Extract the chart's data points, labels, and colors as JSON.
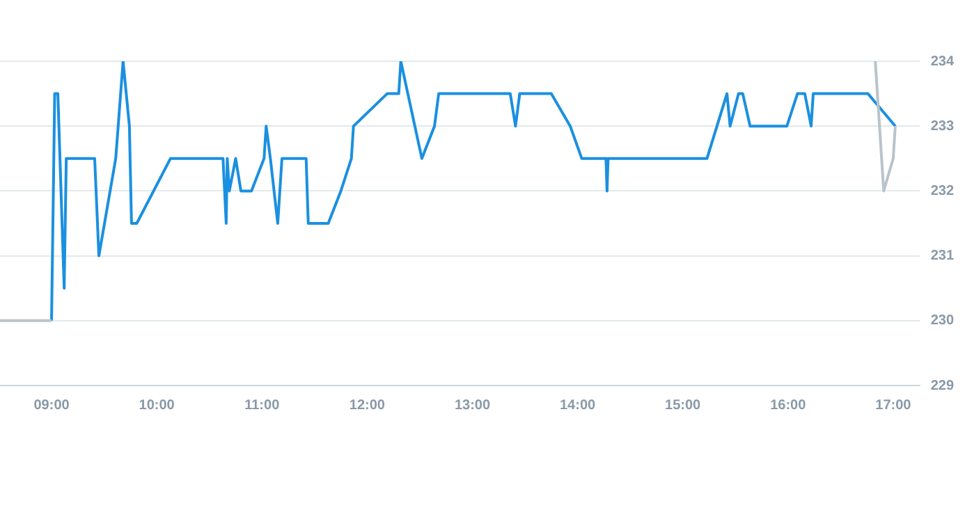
{
  "chart_data": {
    "type": "line",
    "xlim": [
      8.51,
      17.25
    ],
    "ylim": [
      229,
      234
    ],
    "xticks": [
      {
        "value": 9,
        "label": "09:00"
      },
      {
        "value": 10,
        "label": "10:00"
      },
      {
        "value": 11,
        "label": "11:00"
      },
      {
        "value": 12,
        "label": "12:00"
      },
      {
        "value": 13,
        "label": "13:00"
      },
      {
        "value": 14,
        "label": "14:00"
      },
      {
        "value": 15,
        "label": "15:00"
      },
      {
        "value": 16,
        "label": "16:00"
      },
      {
        "value": 17,
        "label": "17:00"
      }
    ],
    "yticks": [
      229,
      230,
      231,
      232,
      233,
      234
    ],
    "grid": "y",
    "legend": false,
    "marker": "none",
    "line_style": "solid",
    "series": [
      {
        "color": "#b8c4cc",
        "x": [
          8.51,
          9.0,
          9.01,
          16.83,
          16.91,
          17.0,
          17.02
        ],
        "values": [
          230,
          230,
          null,
          234,
          232,
          232.5,
          233
        ]
      },
      {
        "color": "#1a90e0",
        "x": [
          9.0,
          9.03,
          9.06,
          9.12,
          9.14,
          9.41,
          9.45,
          9.61,
          9.68,
          9.74,
          9.76,
          9.81,
          10.13,
          10.63,
          10.66,
          10.67,
          10.69,
          10.75,
          10.8,
          10.9,
          11.02,
          11.04,
          11.08,
          11.15,
          11.19,
          11.42,
          11.44,
          11.63,
          11.75,
          11.85,
          11.87,
          12.19,
          12.3,
          12.32,
          12.52,
          12.64,
          12.68,
          13.36,
          13.41,
          13.45,
          13.75,
          13.93,
          14.04,
          14.27,
          14.28,
          14.29,
          15.23,
          15.42,
          15.45,
          15.53,
          15.57,
          15.64,
          15.99,
          16.09,
          16.16,
          16.22,
          16.24,
          16.76,
          17.02
        ],
        "values": [
          230,
          233.5,
          233.5,
          230.5,
          232.5,
          232.5,
          231,
          232.5,
          234,
          233,
          231.5,
          231.5,
          232.5,
          232.5,
          231.5,
          232.5,
          232,
          232.5,
          232,
          232,
          232.5,
          233,
          232.5,
          231.5,
          232.5,
          232.5,
          231.5,
          231.5,
          232,
          232.5,
          233,
          233.5,
          233.5,
          234,
          232.5,
          233,
          233.5,
          233.5,
          233,
          233.5,
          233.5,
          233,
          232.5,
          232.5,
          232,
          232.5,
          232.5,
          233.5,
          233,
          233.5,
          233.5,
          233,
          233,
          233.5,
          233.5,
          233,
          233.5,
          233.5,
          233
        ]
      }
    ]
  }
}
